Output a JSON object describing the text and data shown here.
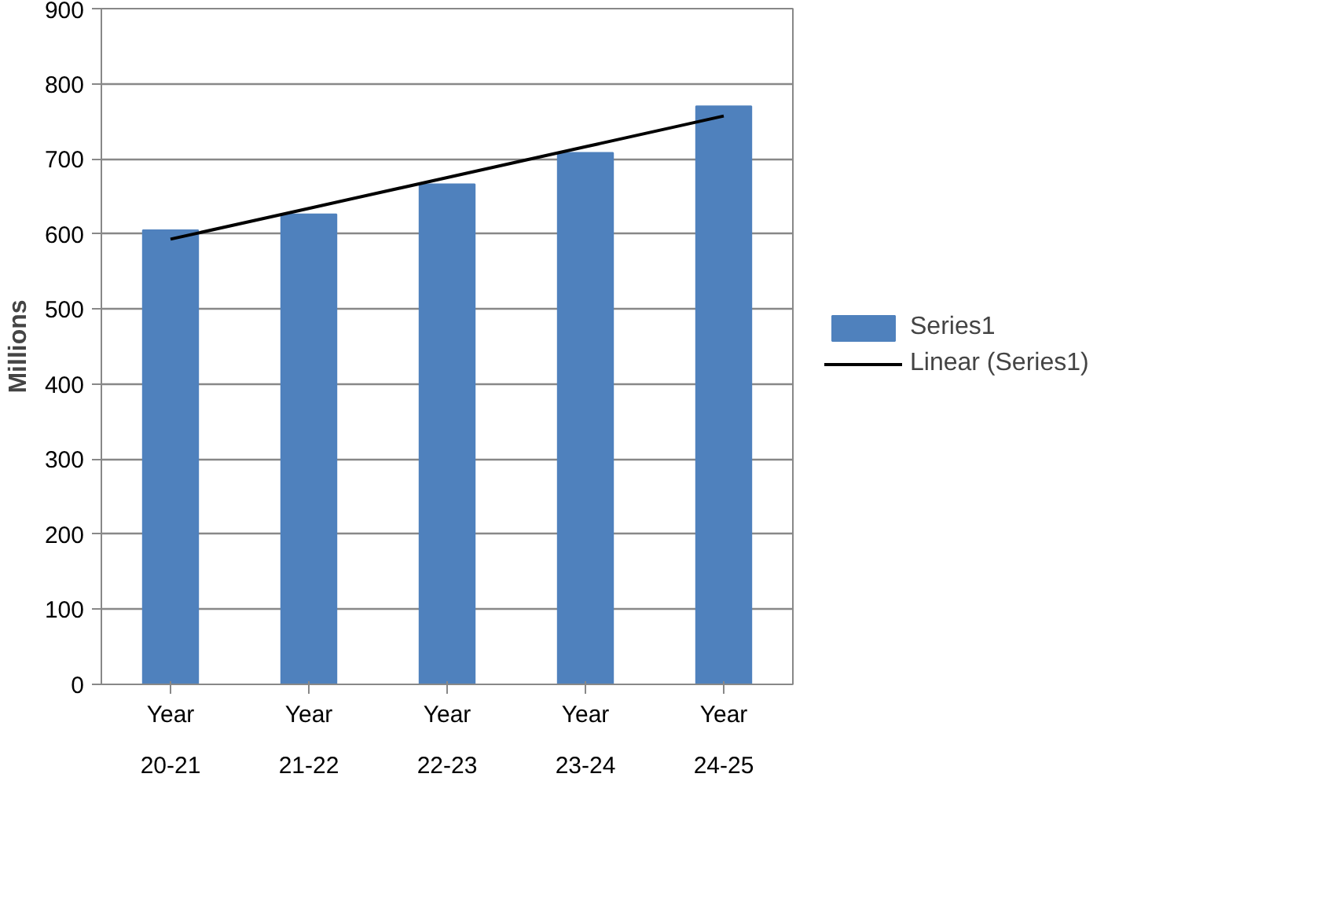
{
  "chart_data": {
    "type": "bar",
    "ylabel": "Millions",
    "categories": [
      "Year\n20-21",
      "Year\n21-22",
      "Year\n22-23",
      "Year\n23-24",
      "Year\n24-25"
    ],
    "series": [
      {
        "name": "Series1",
        "color": "#4f81bd",
        "values": [
          605,
          626,
          666,
          708,
          770
        ]
      },
      {
        "name": "Linear (Series1)",
        "type": "line",
        "color": "#000000",
        "values": [
          593,
          634,
          675,
          716,
          757
        ]
      }
    ],
    "ylim": [
      0,
      900
    ],
    "yticks": [
      0,
      100,
      200,
      300,
      400,
      500,
      600,
      700,
      800,
      900
    ],
    "grid": "y",
    "legend": "right"
  }
}
